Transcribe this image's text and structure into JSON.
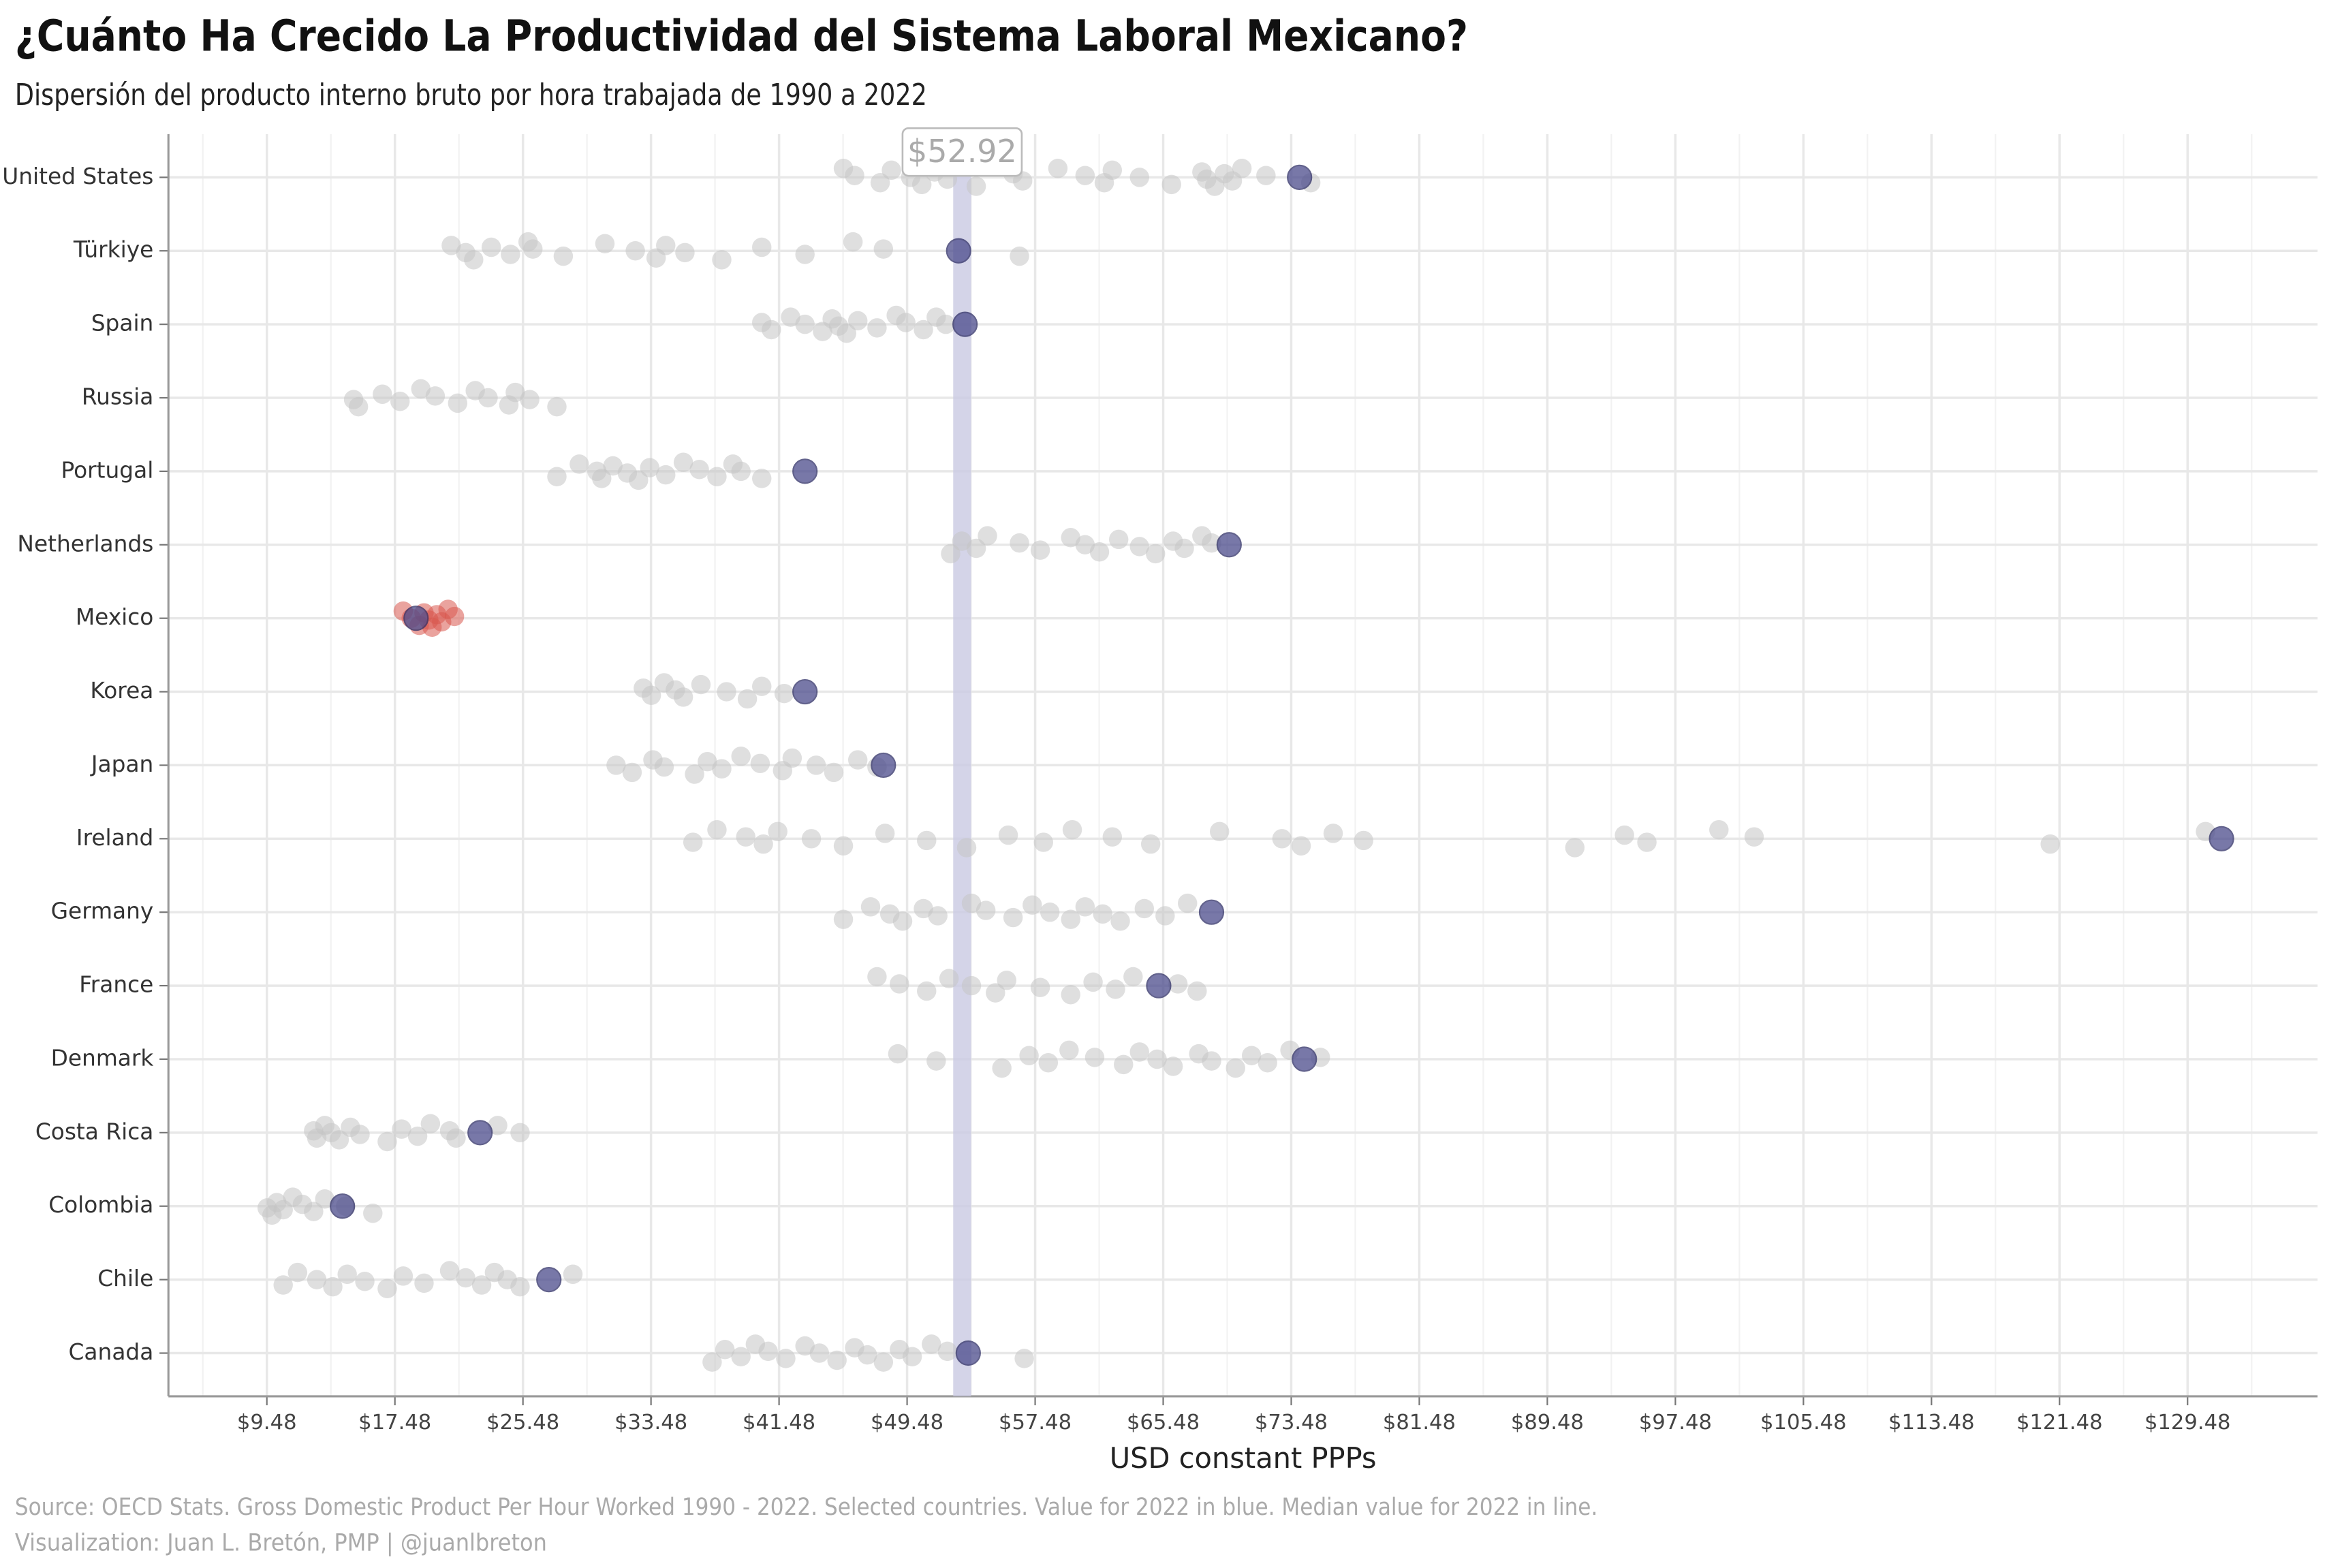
{
  "chart_data": {
    "type": "strip",
    "title": "¿Cuánto Ha Crecido La Productividad del Sistema Laboral Mexicano?",
    "subtitle": "Dispersión del producto interno bruto por hora trabajada de 1990 a 2022",
    "x_label": "USD constant PPPs",
    "source": [
      "Source: OECD Stats. Gross Domestic Product Per Hour Worked 1990 - 2022. Selected countries. Value for 2022 in blue. Median value for 2022 in line.",
      "Visualization: Juan L. Bretón, PMP | @juanlbreton"
    ],
    "categories": [
      "United States",
      "Türkiye",
      "Spain",
      "Russia",
      "Portugal",
      "Netherlands",
      "Mexico",
      "Korea",
      "Japan",
      "Ireland",
      "Germany",
      "France",
      "Denmark",
      "Costa Rica",
      "Colombia",
      "Chile",
      "Canada"
    ],
    "series": [
      {
        "color": "#c4c4c4",
        "highlight_index": 6,
        "highlight_color": "#d9574f",
        "values": [
          [
            45.5,
            46.2,
            47.8,
            48.5,
            49.7,
            50.4,
            51.2,
            52.0,
            53.8,
            56.1,
            56.7,
            58.9,
            60.6,
            61.8,
            62.3,
            64.0,
            66.0,
            67.9,
            68.2,
            68.7,
            69.3,
            69.8,
            70.4,
            71.9,
            74.7
          ],
          [
            21.0,
            21.9,
            22.4,
            23.5,
            24.7,
            25.8,
            26.1,
            28.0,
            30.6,
            32.5,
            33.8,
            34.4,
            35.6,
            37.9,
            40.4,
            43.1,
            46.1,
            48.0,
            56.5
          ],
          [
            40.4,
            41.0,
            42.2,
            43.1,
            44.2,
            44.8,
            45.2,
            45.7,
            46.4,
            47.6,
            48.8,
            49.4,
            50.5,
            51.3,
            51.9
          ],
          [
            14.9,
            15.2,
            16.7,
            17.8,
            19.1,
            20.0,
            21.4,
            22.5,
            23.3,
            24.6,
            25.0,
            25.9,
            27.6
          ],
          [
            27.6,
            29.0,
            30.1,
            30.4,
            31.1,
            32.0,
            32.7,
            33.4,
            34.4,
            35.5,
            36.5,
            37.6,
            38.6,
            39.1,
            40.4
          ],
          [
            52.2,
            52.9,
            53.8,
            54.5,
            56.5,
            57.8,
            59.7,
            60.6,
            61.5,
            62.7,
            64.0,
            65.0,
            66.1,
            66.8,
            67.9,
            68.5
          ],
          [
            18.0,
            18.5,
            19.0,
            19.3,
            19.6,
            19.8,
            20.1,
            20.4,
            20.8,
            21.2
          ],
          [
            33.0,
            33.5,
            34.3,
            35.0,
            35.5,
            36.6,
            38.2,
            39.5,
            40.4,
            41.8
          ],
          [
            31.3,
            32.3,
            33.6,
            34.3,
            36.2,
            37.0,
            37.9,
            39.1,
            40.3,
            41.7,
            42.3,
            43.8,
            44.9,
            46.4,
            47.6
          ],
          [
            36.1,
            37.6,
            39.4,
            40.5,
            41.4,
            43.5,
            45.5,
            48.1,
            50.7,
            53.2,
            55.8,
            58.0,
            59.8,
            62.3,
            64.7,
            69.0,
            72.9,
            74.1,
            76.1,
            78.0,
            91.2,
            94.3,
            95.7,
            100.2,
            102.4,
            120.9,
            130.6
          ],
          [
            45.5,
            47.2,
            48.4,
            49.2,
            50.5,
            51.4,
            53.5,
            54.4,
            56.1,
            57.3,
            58.4,
            59.7,
            60.6,
            61.7,
            62.8,
            64.3,
            65.6,
            67.0
          ],
          [
            47.6,
            49.0,
            50.7,
            52.1,
            53.5,
            55.0,
            55.7,
            57.8,
            59.7,
            61.1,
            62.5,
            63.6,
            66.4,
            67.6
          ],
          [
            48.9,
            51.3,
            55.4,
            57.1,
            58.3,
            59.6,
            61.2,
            63.0,
            64.0,
            65.1,
            66.1,
            67.7,
            68.5,
            70.0,
            71.0,
            72.0,
            73.4,
            75.3
          ],
          [
            12.4,
            12.6,
            13.1,
            13.5,
            14.0,
            14.7,
            15.3,
            17.0,
            17.9,
            18.9,
            19.7,
            20.9,
            21.3,
            23.9,
            25.3
          ],
          [
            9.5,
            9.8,
            10.1,
            10.5,
            11.1,
            11.7,
            12.4,
            13.1,
            14.4,
            16.1
          ],
          [
            10.5,
            11.4,
            12.6,
            13.6,
            14.5,
            15.6,
            17.0,
            18.0,
            19.3,
            20.9,
            21.9,
            22.9,
            23.7,
            24.5,
            25.3,
            28.6
          ],
          [
            37.3,
            38.1,
            39.1,
            40.0,
            40.8,
            41.9,
            43.1,
            44.0,
            45.1,
            46.2,
            47.0,
            48.0,
            49.0,
            49.8,
            51.0,
            52.0,
            56.8
          ]
        ]
      },
      {
        "color": "#4b4b8c",
        "values": [
          74.0,
          52.7,
          53.1,
          43.1,
          69.6,
          18.8,
          43.1,
          48.0,
          131.6,
          68.5,
          65.2,
          74.3,
          22.8,
          14.2,
          27.1,
          53.3
        ]
      }
    ],
    "latest_categories": [
      0,
      1,
      2,
      4,
      5,
      6,
      7,
      8,
      9,
      10,
      11,
      12,
      13,
      14,
      15,
      16
    ],
    "median": {
      "value": 52.92,
      "label": "$52.92",
      "color": "#c9c9e2"
    },
    "xlim": [
      3.33,
      137.6
    ],
    "xticks": [
      {
        "value": 9.48,
        "label": "$9.48"
      },
      {
        "value": 17.48,
        "label": "$17.48"
      },
      {
        "value": 25.48,
        "label": "$25.48"
      },
      {
        "value": 33.48,
        "label": "$33.48"
      },
      {
        "value": 41.48,
        "label": "$41.48"
      },
      {
        "value": 49.48,
        "label": "$49.48"
      },
      {
        "value": 57.48,
        "label": "$57.48"
      },
      {
        "value": 65.48,
        "label": "$65.48"
      },
      {
        "value": 73.48,
        "label": "$73.48"
      },
      {
        "value": 81.48,
        "label": "$81.48"
      },
      {
        "value": 89.48,
        "label": "$89.48"
      },
      {
        "value": 97.48,
        "label": "$97.48"
      },
      {
        "value": 105.48,
        "label": "$105.48"
      },
      {
        "value": 113.48,
        "label": "$113.48"
      },
      {
        "value": 121.48,
        "label": "$121.48"
      },
      {
        "value": 129.48,
        "label": "$129.48"
      }
    ],
    "grid": true
  }
}
